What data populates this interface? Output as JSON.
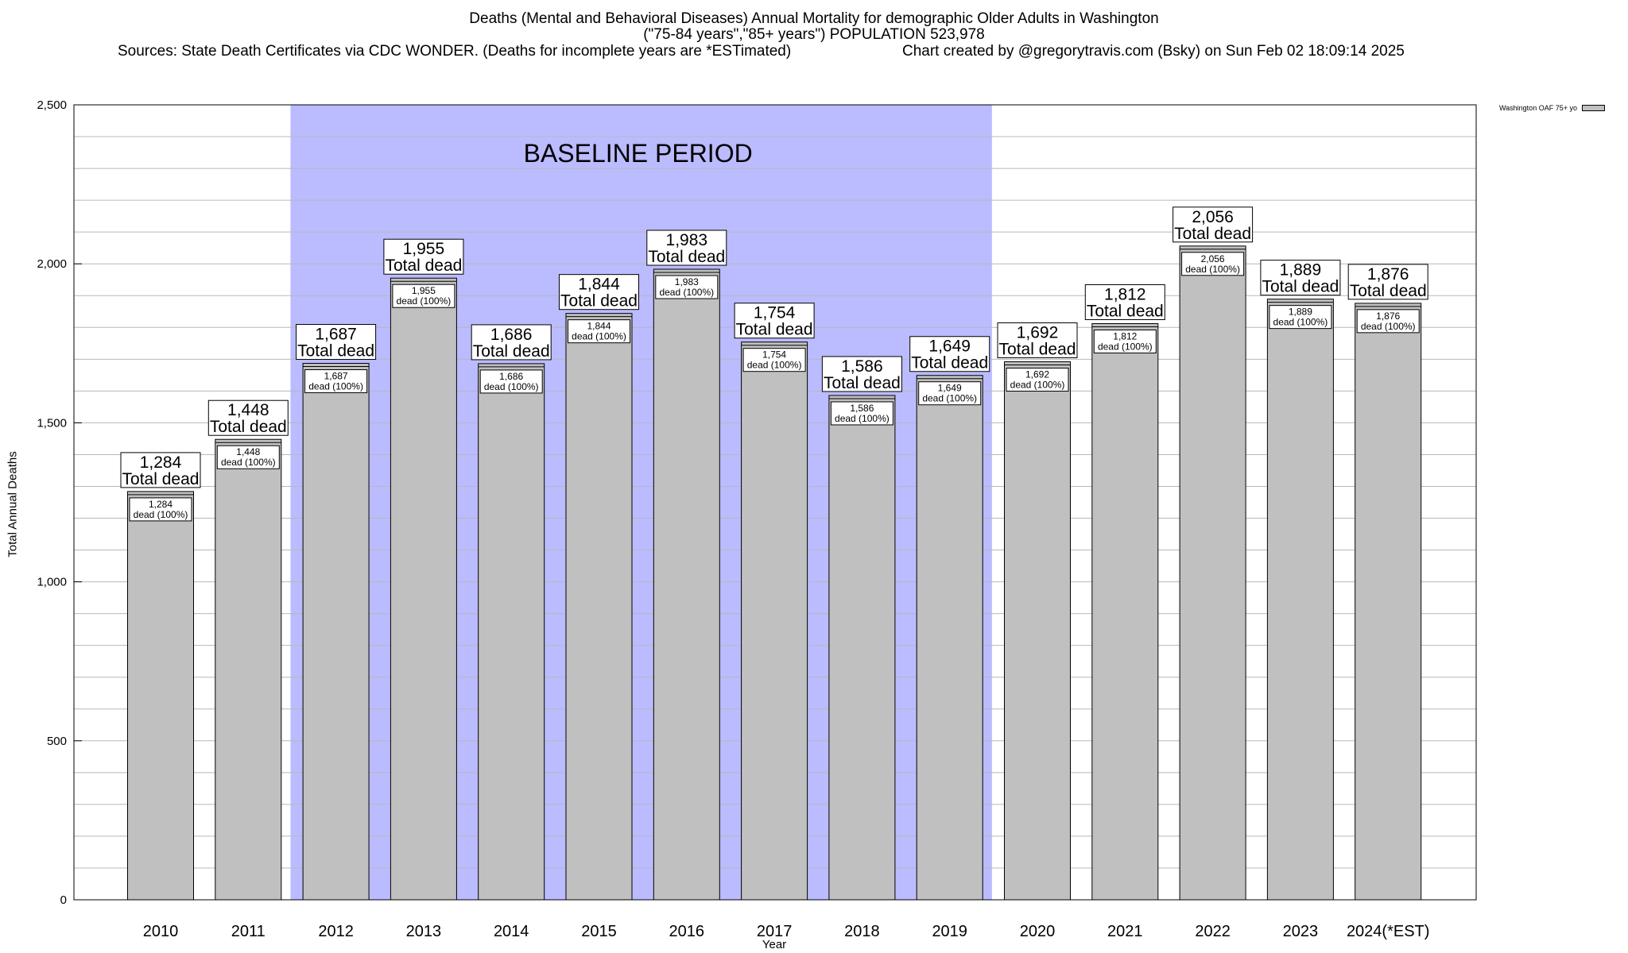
{
  "title": {
    "line1": "Deaths (Mental and Behavioral Diseases) Annual Mortality for demographic Older Adults in Washington",
    "line2": "(\"75-84 years\",\"85+ years\") POPULATION 523,978",
    "sources": "Sources: State Death Certificates via CDC WONDER. (Deaths for incomplete years are *ESTimated)",
    "credit": "Chart created by @gregorytravis.com (Bsky) on Sun Feb 02 18:09:14 2025"
  },
  "chart_data": {
    "type": "bar",
    "title": "Deaths (Mental and Behavioral Diseases) Annual Mortality for demographic Older Adults in Washington",
    "subtitle": "(\"75-84 years\",\"85+ years\") POPULATION 523,978",
    "xlabel": "Year",
    "ylabel": "Total Annual Deaths",
    "ylim": [
      0,
      2500
    ],
    "yticks": [
      0,
      500,
      1000,
      1500,
      2000,
      2500
    ],
    "ytick_labels": [
      "0",
      "500",
      "1,000",
      "1,500",
      "2,000",
      "2,500"
    ],
    "categories": [
      "2010",
      "2011",
      "2012",
      "2013",
      "2014",
      "2015",
      "2016",
      "2017",
      "2018",
      "2019",
      "2020",
      "2021",
      "2022",
      "2023",
      "2024(*EST)"
    ],
    "series": [
      {
        "name": "Washington OAF 75+ yo",
        "values": [
          1284,
          1448,
          1687,
          1955,
          1686,
          1844,
          1983,
          1754,
          1586,
          1649,
          1692,
          1812,
          2056,
          1889,
          1876
        ]
      }
    ],
    "value_labels": [
      "1,284",
      "1,448",
      "1,687",
      "1,955",
      "1,686",
      "1,844",
      "1,983",
      "1,754",
      "1,586",
      "1,649",
      "1,692",
      "1,812",
      "2,056",
      "1,889",
      "1,876"
    ],
    "total_label_suffix": "Total dead",
    "segment_label_suffix": "dead (100%)",
    "annotation": {
      "text": "BASELINE PERIOD",
      "start": "2012",
      "end": "2019",
      "color": "#bbbbff"
    },
    "bar_color": "#c0c0c0",
    "grid": true,
    "legend": "top-right"
  }
}
